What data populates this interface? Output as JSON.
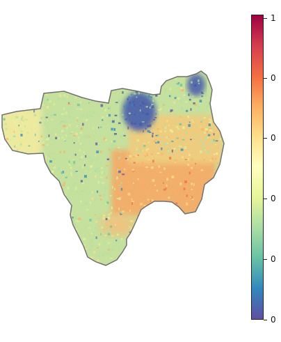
{
  "colorbar": {
    "colormap": "Spectral_r",
    "colors": [
      "#5e4fa2",
      "#3288bd",
      "#66c2a5",
      "#abdda4",
      "#e6f598",
      "#ffffbf",
      "#fee08b",
      "#fdae61",
      "#f46d43",
      "#d53e4f",
      "#9e0142"
    ],
    "tick_labels": [
      "1",
      "0",
      "0",
      "0",
      "0",
      "0"
    ]
  },
  "map": {
    "background": "#ffffff",
    "boundary_color": "#707070",
    "dominant_color": "#c6e59a",
    "low_value_color": "#3f5fa8",
    "high_value_color": "#f8a85e"
  }
}
